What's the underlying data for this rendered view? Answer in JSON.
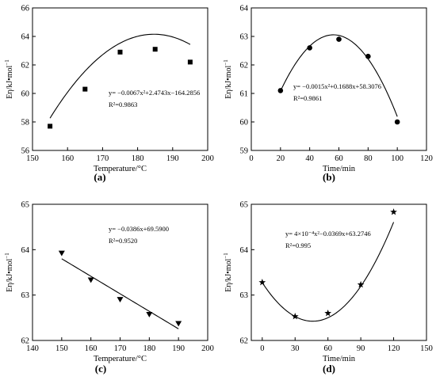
{
  "chart_data": [
    {
      "type": "scatter",
      "panel": "(a)",
      "xlabel": "Temperature/°C",
      "ylabel_main": "Eη/kJ•mol",
      "ylabel_sup": "−1",
      "xlim": [
        150,
        200
      ],
      "ylim": [
        56,
        66
      ],
      "xticks": [
        "150",
        "160",
        "170",
        "180",
        "190",
        "200"
      ],
      "yticks": [
        "56",
        "58",
        "60",
        "62",
        "64",
        "66"
      ],
      "marker": "square",
      "points": [
        {
          "x": 155,
          "y": 57.7
        },
        {
          "x": 165,
          "y": 60.3
        },
        {
          "x": 175,
          "y": 62.9
        },
        {
          "x": 185,
          "y": 63.1
        },
        {
          "x": 195,
          "y": 62.2
        }
      ],
      "fit": {
        "kind": "quadratic",
        "coeffs": [
          -0.0067,
          2.4743,
          -164.2856
        ],
        "xrange": [
          155,
          195
        ]
      },
      "equation": "y= −0.0067x²+2.4743x−164.2856",
      "r2": "R²=0.9863"
    },
    {
      "type": "scatter",
      "panel": "(b)",
      "xlabel": "Time/min",
      "ylabel_main": "Eη/kJ•mol",
      "ylabel_sup": "−1",
      "xlim": [
        0,
        120
      ],
      "ylim": [
        59,
        64
      ],
      "xticks": [
        "0",
        "20",
        "40",
        "60",
        "80",
        "100",
        "120"
      ],
      "yticks": [
        "59",
        "60",
        "61",
        "62",
        "63",
        "64"
      ],
      "marker": "circle",
      "points": [
        {
          "x": 20,
          "y": 61.1
        },
        {
          "x": 40,
          "y": 62.6
        },
        {
          "x": 60,
          "y": 62.9
        },
        {
          "x": 80,
          "y": 62.3
        },
        {
          "x": 100,
          "y": 60.0
        }
      ],
      "fit": {
        "kind": "quadratic",
        "coeffs": [
          -0.0015,
          0.1688,
          58.3076
        ],
        "xrange": [
          20,
          100
        ]
      },
      "equation": "y= −0.0015x²+0.1688x+58.3076",
      "r2": "R²=0.9861"
    },
    {
      "type": "scatter",
      "panel": "(c)",
      "xlabel": "Temperature/°C",
      "ylabel_main": "Eη/kJ•mol",
      "ylabel_sup": "−1",
      "xlim": [
        140,
        200
      ],
      "ylim": [
        62,
        65
      ],
      "xticks": [
        "140",
        "150",
        "160",
        "170",
        "180",
        "190",
        "200"
      ],
      "yticks": [
        "62",
        "63",
        "64",
        "65"
      ],
      "marker": "triangle-down",
      "points": [
        {
          "x": 150,
          "y": 63.92
        },
        {
          "x": 160,
          "y": 63.33
        },
        {
          "x": 170,
          "y": 62.9
        },
        {
          "x": 180,
          "y": 62.57
        },
        {
          "x": 190,
          "y": 62.37
        }
      ],
      "fit": {
        "kind": "linear",
        "coeffs": [
          -0.0386,
          69.59
        ],
        "xrange": [
          150,
          190
        ]
      },
      "equation": "y= −0.0386x+69.5900",
      "r2": "R²=0.9520"
    },
    {
      "type": "scatter",
      "panel": "(d)",
      "xlabel": "Time/min",
      "ylabel_main": "Eη/kJ•mol",
      "ylabel_sup": "−1",
      "xlim": [
        -10,
        150
      ],
      "ylim": [
        62,
        65
      ],
      "xticks": [
        "0",
        "30",
        "60",
        "90",
        "120",
        "150"
      ],
      "yticks": [
        "62",
        "63",
        "64",
        "65"
      ],
      "marker": "star",
      "points": [
        {
          "x": 0,
          "y": 63.28
        },
        {
          "x": 30,
          "y": 62.53
        },
        {
          "x": 60,
          "y": 62.6
        },
        {
          "x": 90,
          "y": 63.23
        },
        {
          "x": 120,
          "y": 64.83
        }
      ],
      "fit": {
        "kind": "quadratic",
        "coeffs": [
          0.0004,
          -0.0369,
          63.2746
        ],
        "xrange": [
          0,
          120
        ]
      },
      "equation": "y= 4×10⁻⁴x²−0.0369x+63.2746",
      "r2": "R²=0.995"
    }
  ]
}
